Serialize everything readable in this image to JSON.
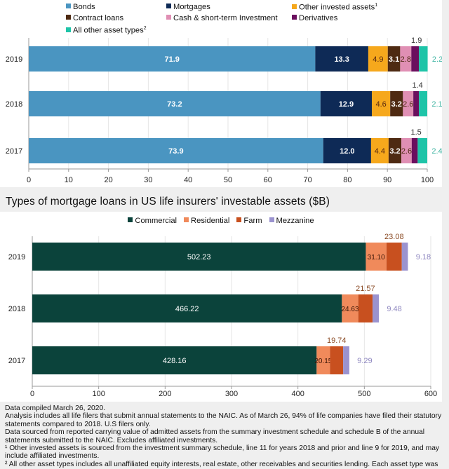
{
  "chart_data": [
    {
      "type": "bar",
      "orientation": "horizontal",
      "stacked": true,
      "title": "",
      "xlabel": "",
      "ylabel": "",
      "xlim": [
        0,
        100
      ],
      "x_ticks": [
        "0",
        "10",
        "20",
        "30",
        "40",
        "50",
        "60",
        "70",
        "80",
        "90",
        "100"
      ],
      "grid": true,
      "legend_position": "top",
      "categories": [
        "2019",
        "2018",
        "2017"
      ],
      "series": [
        {
          "name": "Bonds",
          "color": "#4a95c1",
          "label_color": "#ffffff",
          "values": [
            71.9,
            73.2,
            73.9
          ]
        },
        {
          "name": "Mortgages",
          "color": "#0e2a56",
          "label_color": "#ffffff",
          "values": [
            13.3,
            12.9,
            12.0
          ]
        },
        {
          "name": "Other invested assets",
          "footnote": "1",
          "color": "#f6a81c",
          "label_color": "#5a2a10",
          "values": [
            4.9,
            4.6,
            4.4
          ]
        },
        {
          "name": "Contract loans",
          "color": "#4e2a12",
          "label_color": "#ffffff",
          "values": [
            3.1,
            3.2,
            3.2
          ]
        },
        {
          "name": "Cash & short-term Investment",
          "color": "#e08fb4",
          "label_color": "#4e2a12",
          "values": [
            2.8,
            2.6,
            2.6
          ]
        },
        {
          "name": "Derivatives",
          "color": "#6b0f5e",
          "label_color": "#333333",
          "label_position": "above",
          "values": [
            1.9,
            1.4,
            1.5
          ]
        },
        {
          "name": "All other asset types",
          "footnote": "2",
          "color": "#1ec4a8",
          "label_color": "#3fb5a3",
          "label_position": "outside",
          "values": [
            2.2,
            2.1,
            2.4
          ]
        }
      ]
    },
    {
      "type": "bar",
      "orientation": "horizontal",
      "stacked": true,
      "title": "Types of mortgage loans in US life insurers' investable assets ($B)",
      "xlabel": "",
      "ylabel": "",
      "xlim": [
        0,
        600
      ],
      "x_ticks": [
        "0",
        "100",
        "200",
        "300",
        "400",
        "500",
        "600"
      ],
      "grid": true,
      "legend_position": "top",
      "categories": [
        "2019",
        "2018",
        "2017"
      ],
      "series": [
        {
          "name": "Commercial",
          "color": "#0b433b",
          "label_color": "#ffffff",
          "values": [
            502.23,
            466.22,
            428.16
          ]
        },
        {
          "name": "Residential",
          "color": "#f08a5b",
          "label_color": "#3a1608",
          "values": [
            31.1,
            24.63,
            20.15
          ]
        },
        {
          "name": "Farm",
          "color": "#c8501f",
          "label_color": "#8a4a24",
          "label_position": "above",
          "values": [
            23.08,
            21.57,
            19.74
          ]
        },
        {
          "name": "Mezzanine",
          "color": "#9b93cf",
          "label_color": "#8f88c0",
          "label_position": "outside",
          "values": [
            9.18,
            9.48,
            9.29
          ]
        }
      ],
      "value_labels": {
        "Commercial": [
          "502.23",
          "466.22",
          "428.16"
        ],
        "Residential": [
          "31.10",
          "24.63",
          "20.15"
        ],
        "Farm": [
          "23.08",
          "21.57",
          "19.74"
        ],
        "Mezzanine": [
          "9.18",
          "9.48",
          "9.29"
        ]
      }
    }
  ],
  "chart2_title": "Types of mortgage loans in US life insurers' investable assets ($B)",
  "notes": [
    "Data compiled March 26, 2020.",
    "Analysis includes all life filers that submit annual statements to the NAIC. As of March 26, 94% of life companies have filed their statutory statements compared to 2018. U.S filers only.",
    "Data sourced from reported carrying value of admitted assets from the summary investment schedule and schedule B of the annual statements submitted to the NAIC. Excludes affiliated investments.",
    "¹ Other invested assets is sourced from the investment summary schedule, line 11 for years 2018 and prior and line 9 for 2019, and may include affiliated investments.",
    "² All other asset types includes all unaffiliated equity interests, real estate, other receivables and securities lending. Each asset type was"
  ]
}
